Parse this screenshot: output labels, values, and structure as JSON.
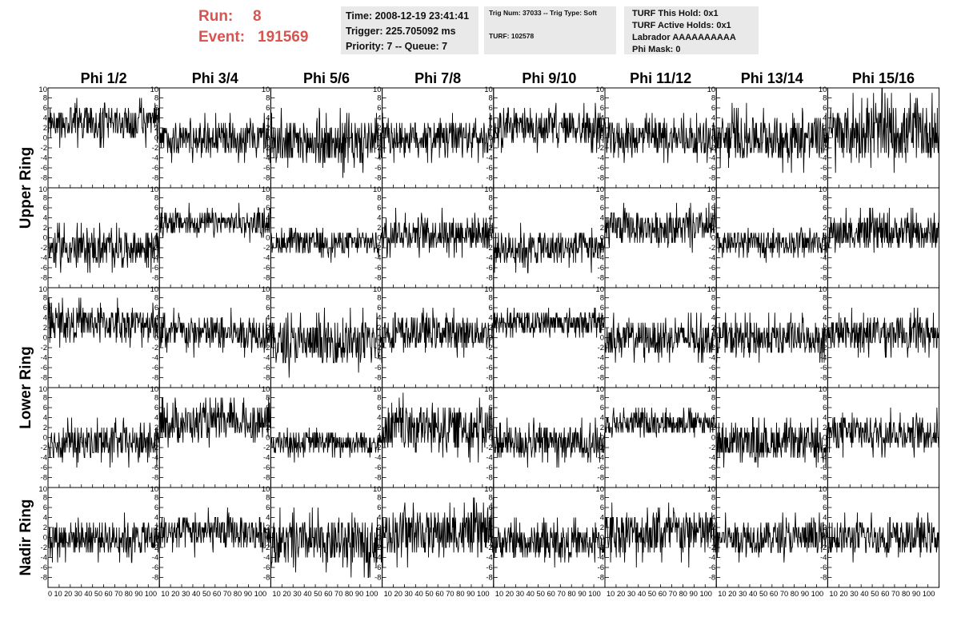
{
  "header": {
    "run_label": "Run:",
    "run_value": "8",
    "event_label": "Event:",
    "event_value": "191569",
    "time": "Time: 2008-12-19 23:41:41",
    "trigger": "Trigger: 225.705092 ms",
    "priority": "Priority: 7 -- Queue: 7",
    "trig_num": "Trig Num: 37033 -- Trig Type: Soft",
    "turf": "TURF: 102578",
    "turf_this_hold": "TURF This Hold: 0x1",
    "turf_active_holds": "TURF Active Holds: 0x1",
    "labrador": "Labrador AAAAAAAAAA",
    "phi_mask": "Phi Mask: 0"
  },
  "colors": {
    "accent": "#d9534f",
    "panel_bg": "#e9e9e9",
    "trace": "#000000"
  },
  "chart_data": {
    "type": "line",
    "columns": [
      "Phi 1/2",
      "Phi 3/4",
      "Phi 5/6",
      "Phi 7/8",
      "Phi 9/10",
      "Phi 11/12",
      "Phi 13/14",
      "Phi 15/16"
    ],
    "ring_labels": [
      {
        "name": "Upper Ring",
        "rows": [
          0,
          1
        ]
      },
      {
        "name": "Lower Ring",
        "rows": [
          2,
          3
        ]
      },
      {
        "name": "Nadir Ring",
        "rows": [
          4
        ]
      }
    ],
    "xlim": [
      0,
      100
    ],
    "ylim": [
      -10,
      10
    ],
    "yticks": [
      -8,
      -6,
      -4,
      -2,
      0,
      2,
      4,
      6,
      8
    ],
    "ytick_labels": [
      "-8",
      "-6",
      "-4",
      "-2",
      "0",
      "2",
      "4",
      "6",
      "8"
    ],
    "y_edge_label": "10",
    "xticks": [
      0,
      10,
      20,
      30,
      40,
      50,
      60,
      70,
      80,
      90,
      100
    ],
    "xtick_labels": [
      "0",
      "10",
      "20",
      "30",
      "40",
      "50",
      "60",
      "70",
      "80",
      "90",
      "100"
    ],
    "x_axis_text": [
      "0 10 20 30 40 50 60 70 80 90 100",
      "10 20 30 40 50 60 70 80 90 100",
      "10 20 30 40 50 60 70 80 90 100",
      "10 20 30 40 50 60 70 80 90 100",
      "10 20 30 40 50 60 70 80 90 100",
      "10 20 30 40 50 60 70 80 90 100",
      "10 20 30 40 50 60 70 80 90 100",
      "10 20 30 40 50 60 70 80 90 100"
    ],
    "grid": false,
    "panels": [
      [
        {
          "baseline": 3,
          "spread": 3
        },
        {
          "baseline": 0,
          "spread": 3
        },
        {
          "baseline": -1,
          "spread": 4
        },
        {
          "baseline": 0,
          "spread": 3
        },
        {
          "baseline": 2,
          "spread": 3
        },
        {
          "baseline": 0,
          "spread": 3
        },
        {
          "baseline": 0,
          "spread": 4
        },
        {
          "baseline": 1,
          "spread": 5
        }
      ],
      [
        {
          "baseline": -2,
          "spread": 3
        },
        {
          "baseline": 3,
          "spread": 2
        },
        {
          "baseline": -1,
          "spread": 2
        },
        {
          "baseline": 1,
          "spread": 3
        },
        {
          "baseline": -2,
          "spread": 3
        },
        {
          "baseline": 2,
          "spread": 3
        },
        {
          "baseline": -1,
          "spread": 2
        },
        {
          "baseline": 1,
          "spread": 3
        }
      ],
      [
        {
          "baseline": 3,
          "spread": 3
        },
        {
          "baseline": 1,
          "spread": 3
        },
        {
          "baseline": -1,
          "spread": 4
        },
        {
          "baseline": 1,
          "spread": 3
        },
        {
          "baseline": 3,
          "spread": 2
        },
        {
          "baseline": 0,
          "spread": 3
        },
        {
          "baseline": 0,
          "spread": 3
        },
        {
          "baseline": 1,
          "spread": 3
        }
      ],
      [
        {
          "baseline": -1,
          "spread": 3
        },
        {
          "baseline": 3,
          "spread": 3
        },
        {
          "baseline": -1,
          "spread": 2
        },
        {
          "baseline": 2,
          "spread": 4
        },
        {
          "baseline": -1,
          "spread": 3
        },
        {
          "baseline": 3,
          "spread": 2
        },
        {
          "baseline": -1,
          "spread": 3
        },
        {
          "baseline": 1,
          "spread": 3
        }
      ],
      [
        {
          "baseline": 0,
          "spread": 3
        },
        {
          "baseline": 1,
          "spread": 3
        },
        {
          "baseline": -1,
          "spread": 4
        },
        {
          "baseline": 1,
          "spread": 4
        },
        {
          "baseline": -1,
          "spread": 3
        },
        {
          "baseline": 1,
          "spread": 4
        },
        {
          "baseline": 0,
          "spread": 3
        },
        {
          "baseline": 0,
          "spread": 3
        }
      ]
    ]
  }
}
